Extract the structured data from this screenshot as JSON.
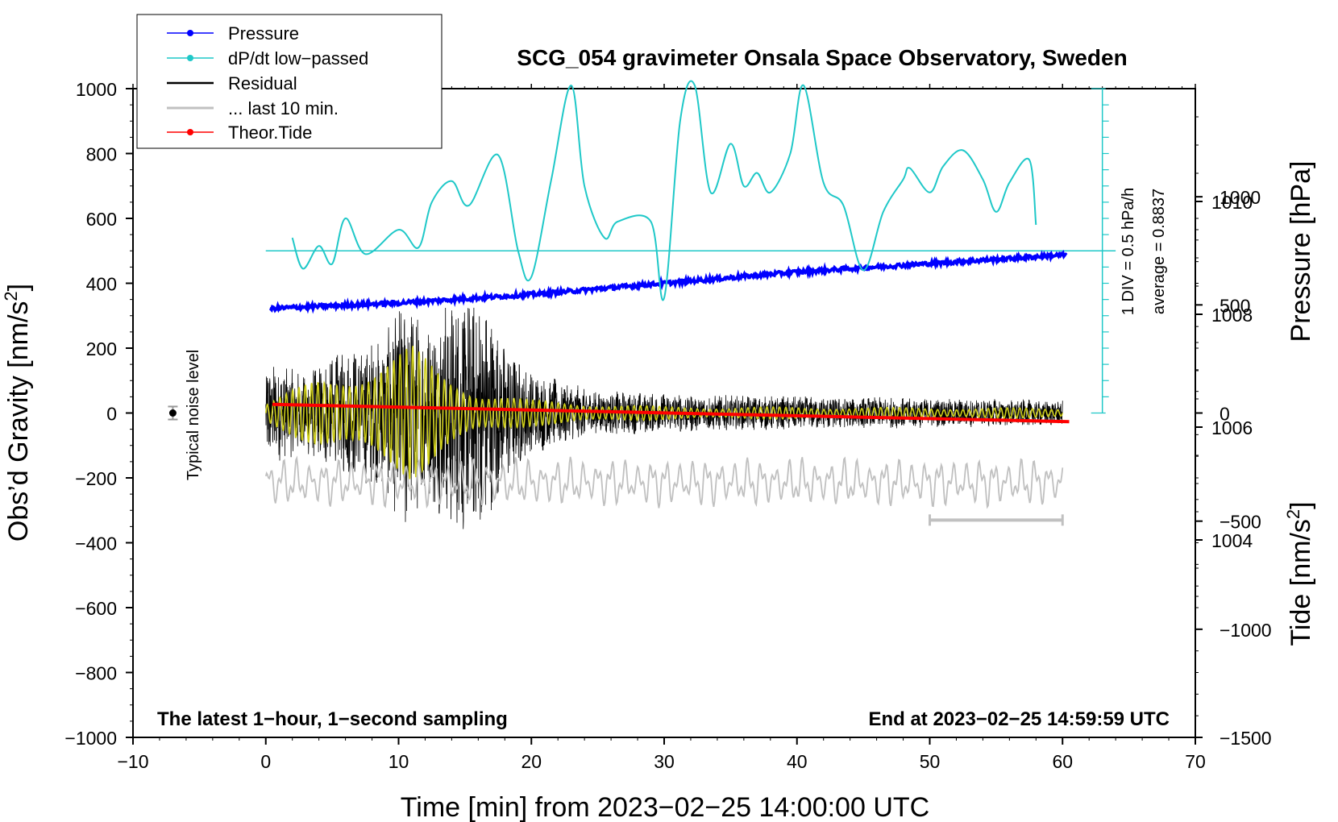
{
  "chart_data": {
    "type": "line",
    "title": "SCG_054 gravimeter Onsala Space Observatory, Sweden",
    "xlabel": "Time [min] from 2023−02−25 14:00:00 UTC",
    "ylabel_left_main": "Obs’d Gravity [nm/s",
    "ylabel_left_sup": "2",
    "ylabel_left_end": "]",
    "ylabel_right_pressure": "Pressure [hPa]",
    "ylabel_right_tide_main": "Tide [nm/s",
    "ylabel_right_tide_sup": "2",
    "ylabel_right_tide_end": "]",
    "xlim": [
      -10,
      70
    ],
    "ylim_gravity": [
      -1000,
      1000
    ],
    "ylim_pressure": [
      1000.5,
      1012.0
    ],
    "ylim_tide": [
      -1500,
      1500
    ],
    "x_ticks": [
      "−10",
      "0",
      "10",
      "20",
      "30",
      "40",
      "50",
      "60",
      "70"
    ],
    "x_tick_values": [
      -10,
      0,
      10,
      20,
      30,
      40,
      50,
      60,
      70
    ],
    "y_ticks_gravity": [
      "1000",
      "800",
      "600",
      "400",
      "200",
      "0",
      "−200",
      "−400",
      "−600",
      "−800",
      "−1000"
    ],
    "y_tick_values_gravity": [
      1000,
      800,
      600,
      400,
      200,
      0,
      -200,
      -400,
      -600,
      -800,
      -1000
    ],
    "y_ticks_pressure": [
      "1010",
      "1008",
      "1006",
      "1004"
    ],
    "y_tick_values_pressure": [
      1010,
      1008,
      1006,
      1004
    ],
    "y_ticks_tide": [
      "1000",
      "500",
      "0",
      "−500",
      "−1000",
      "−1500"
    ],
    "y_tick_values_tide": [
      1000,
      500,
      0,
      -500,
      -1000,
      -1500
    ],
    "legend": [
      {
        "label": "Pressure",
        "color": "#0000ff",
        "marker": true
      },
      {
        "label": "dP/dt low−passed",
        "color": "#1fc8c8",
        "marker": true
      },
      {
        "label": "Residual",
        "color": "#000000",
        "marker": false
      },
      {
        "label": "... last 10 min.",
        "color": "#c0c0c0",
        "marker": false
      },
      {
        "label": "Theor.Tide",
        "color": "#ff0000",
        "marker": true
      }
    ],
    "legend_position": "top-left",
    "annotations": {
      "bottom_left": "The latest 1−hour, 1−second sampling",
      "bottom_right": "End at 2023−02−25 14:59:59 UTC",
      "noise_label": "Typical noise level",
      "div_label": "1 DIV = 0.5 hPa/h",
      "average_label": "average = 0.8837"
    },
    "noise_marker": {
      "x": -7,
      "y": 0,
      "err": 20
    },
    "dpdt_zero_line_gravity": 500,
    "dpdt_scale_bar": {
      "x": 63,
      "y_top": 1000,
      "y_bottom": 0,
      "tick_step": 50
    },
    "last10_bar": {
      "x_start": 50,
      "x_end": 60,
      "y_gravity": -330
    },
    "series": [
      {
        "name": "Pressure",
        "color": "#0000ff",
        "axis": "pressure",
        "x": [
          0,
          10,
          20,
          30,
          40,
          50,
          60
        ],
        "values": [
          1008.1,
          1008.2,
          1008.35,
          1008.55,
          1008.75,
          1008.9,
          1009.05
        ]
      },
      {
        "name": "dP/dt low-passed",
        "color": "#1fc8c8",
        "axis": "gravity",
        "x": [
          2,
          2.8,
          4,
          5,
          6,
          7.5,
          10,
          11.5,
          12.5,
          14,
          15.3,
          17.5,
          19,
          20,
          21.5,
          23,
          24,
          25.5,
          26.5,
          29,
          30,
          31.2,
          32.3,
          33.5,
          35,
          36,
          37,
          38,
          39.5,
          40.5,
          42,
          43.5,
          45,
          46.5,
          48,
          48.5,
          50,
          51,
          52.5,
          54,
          55,
          56,
          57.5,
          58
        ],
        "values": [
          540,
          445,
          515,
          460,
          600,
          490,
          565,
          510,
          650,
          715,
          640,
          795,
          500,
          420,
          720,
          1010,
          700,
          540,
          590,
          590,
          355,
          900,
          1010,
          680,
          830,
          700,
          740,
          680,
          800,
          1010,
          710,
          640,
          440,
          620,
          720,
          755,
          680,
          760,
          810,
          720,
          620,
          710,
          780,
          580
        ]
      },
      {
        "name": "Residual",
        "color": "#000000",
        "axis": "gravity",
        "x_range": [
          0,
          60
        ],
        "envelope": [
          [
            0,
            160
          ],
          [
            3,
            130
          ],
          [
            6,
            200
          ],
          [
            9,
            240
          ],
          [
            10.5,
            390
          ],
          [
            12,
            260
          ],
          [
            13.5,
            360
          ],
          [
            16,
            380
          ],
          [
            18,
            220
          ],
          [
            20,
            130
          ],
          [
            25,
            70
          ],
          [
            35,
            55
          ],
          [
            45,
            50
          ],
          [
            60,
            40
          ]
        ]
      },
      {
        "name": "Filtered residual",
        "color": "#cfcf1a",
        "axis": "gravity",
        "x_range": [
          0,
          60
        ],
        "envelope": [
          [
            0,
            30
          ],
          [
            4,
            110
          ],
          [
            8,
            150
          ],
          [
            11,
            210
          ],
          [
            13,
            140
          ],
          [
            16,
            70
          ],
          [
            20,
            40
          ],
          [
            30,
            20
          ],
          [
            60,
            15
          ]
        ]
      },
      {
        "name": "Theor.Tide",
        "color": "#ff0000",
        "axis": "tide",
        "x": [
          0.5,
          60.5
        ],
        "values": [
          40,
          -40
        ]
      },
      {
        "name": "... last 10 min.",
        "color": "#c0c0c0",
        "axis": "tide",
        "x_range": [
          0,
          60
        ],
        "center": -320,
        "amplitude": 120
      }
    ]
  }
}
